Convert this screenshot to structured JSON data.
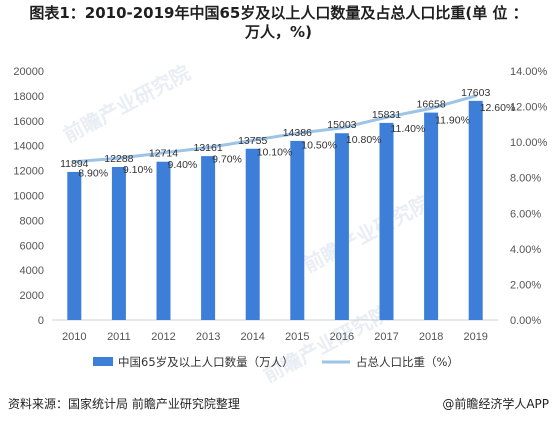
{
  "title": "图表1：2010-2019年中国65岁及以上人口数量及占总人口比重(单 位 ：",
  "title_line2": "万人，%)",
  "source": "资料来源：国家统计局 前瞻产业研究院整理",
  "brand": "@前瞻经济学人APP",
  "watermark_text": "前瞻产业研究院",
  "chart_data": {
    "type": "bar",
    "categories": [
      "2010",
      "2011",
      "2012",
      "2013",
      "2014",
      "2015",
      "2016",
      "2017",
      "2018",
      "2019"
    ],
    "series": [
      {
        "name": "中国65岁及以上人口数量（万人）",
        "type": "bar",
        "axis": "left",
        "values": [
          11894,
          12288,
          12714,
          13161,
          13755,
          14386,
          15003,
          15831,
          16658,
          17603
        ],
        "labels": [
          "11894",
          "12288",
          "12714",
          "13161",
          "13755",
          "14386",
          "15003",
          "15831",
          "16658",
          "17603"
        ],
        "color": "#3c7ed8"
      },
      {
        "name": "占总人口比重（%）",
        "type": "line",
        "axis": "right",
        "values": [
          8.9,
          9.1,
          9.4,
          9.7,
          10.1,
          10.5,
          10.8,
          11.4,
          11.9,
          12.6
        ],
        "labels": [
          "8.90%",
          "9.10%",
          "9.40%",
          "9.70%",
          "10.10%",
          "10.50%",
          "10.80%",
          "11.40%",
          "11.90%",
          "12.60%"
        ],
        "color": "#9dc3e6"
      }
    ],
    "y_left": {
      "min": 0,
      "max": 20000,
      "ticks": [
        "0",
        "2000",
        "4000",
        "6000",
        "8000",
        "10000",
        "12000",
        "14000",
        "16000",
        "18000",
        "20000"
      ]
    },
    "y_right": {
      "min": 0,
      "max": 14,
      "ticks": [
        "0.00%",
        "2.00%",
        "4.00%",
        "6.00%",
        "8.00%",
        "10.00%",
        "12.00%",
        "14.00%"
      ]
    },
    "legend_position": "bottom",
    "grid": false
  }
}
